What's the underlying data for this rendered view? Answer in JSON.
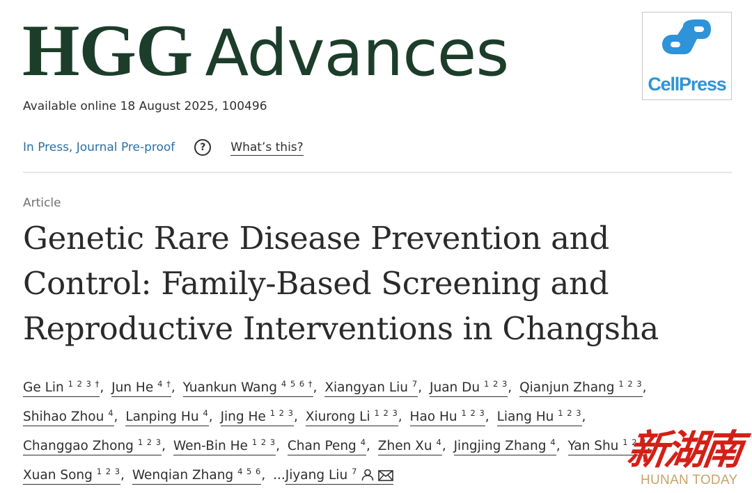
{
  "journal": {
    "name_bold": "HGG",
    "name_light": "Advances",
    "publisher_logo_text": "CellPress",
    "accent_color": "#1c3d2a",
    "publisher_color": "#2f93d8"
  },
  "availability": "Available online 18 August 2025, 100496",
  "status": {
    "label": "In Press, Journal Pre-proof",
    "help_icon": "question-circle-icon",
    "help_glyph": "?",
    "whats_this": "What’s this?",
    "link_color": "#2b6fa5"
  },
  "article": {
    "type": "Article",
    "title": "Genetic Rare Disease Prevention and Control: Family-Based Screening and Reproductive Interventions in Changsha"
  },
  "authors": [
    {
      "name": "Ge Lin",
      "sup": "1 2 3 †"
    },
    {
      "name": "Jun He",
      "sup": "4 †"
    },
    {
      "name": "Yuankun Wang",
      "sup": "4 5 6 †"
    },
    {
      "name": "Xiangyan Liu",
      "sup": "7"
    },
    {
      "name": "Juan Du",
      "sup": "1 2 3"
    },
    {
      "name": "Qianjun Zhang",
      "sup": "1 2 3"
    },
    {
      "name": "Shihao Zhou",
      "sup": "4"
    },
    {
      "name": "Lanping Hu",
      "sup": "4"
    },
    {
      "name": "Jing He",
      "sup": "1 2 3"
    },
    {
      "name": "Xiurong Li",
      "sup": "1 2 3"
    },
    {
      "name": "Hao Hu",
      "sup": "1 2 3"
    },
    {
      "name": "Liang Hu",
      "sup": "1 2 3"
    },
    {
      "name": "Changgao Zhong",
      "sup": "1 2 3"
    },
    {
      "name": "Wen-Bin He",
      "sup": "1 2 3"
    },
    {
      "name": "Chan Peng",
      "sup": "4"
    },
    {
      "name": "Zhen Xu",
      "sup": "4"
    },
    {
      "name": "Jingjing Zhang",
      "sup": "4"
    },
    {
      "name": "Yan Shu",
      "sup": "1 2 3"
    },
    {
      "name": "Xuan Song",
      "sup": "1 2 3"
    },
    {
      "name": "Wenqian Zhang",
      "sup": "4 5 6"
    },
    {
      "name": "Jiyang Liu",
      "sup": "7",
      "prefix": "...",
      "icons": [
        "person-icon",
        "envelope-icon"
      ]
    }
  ],
  "watermark": {
    "chinese": "新湖南",
    "english": "HUNAN TODAY"
  }
}
